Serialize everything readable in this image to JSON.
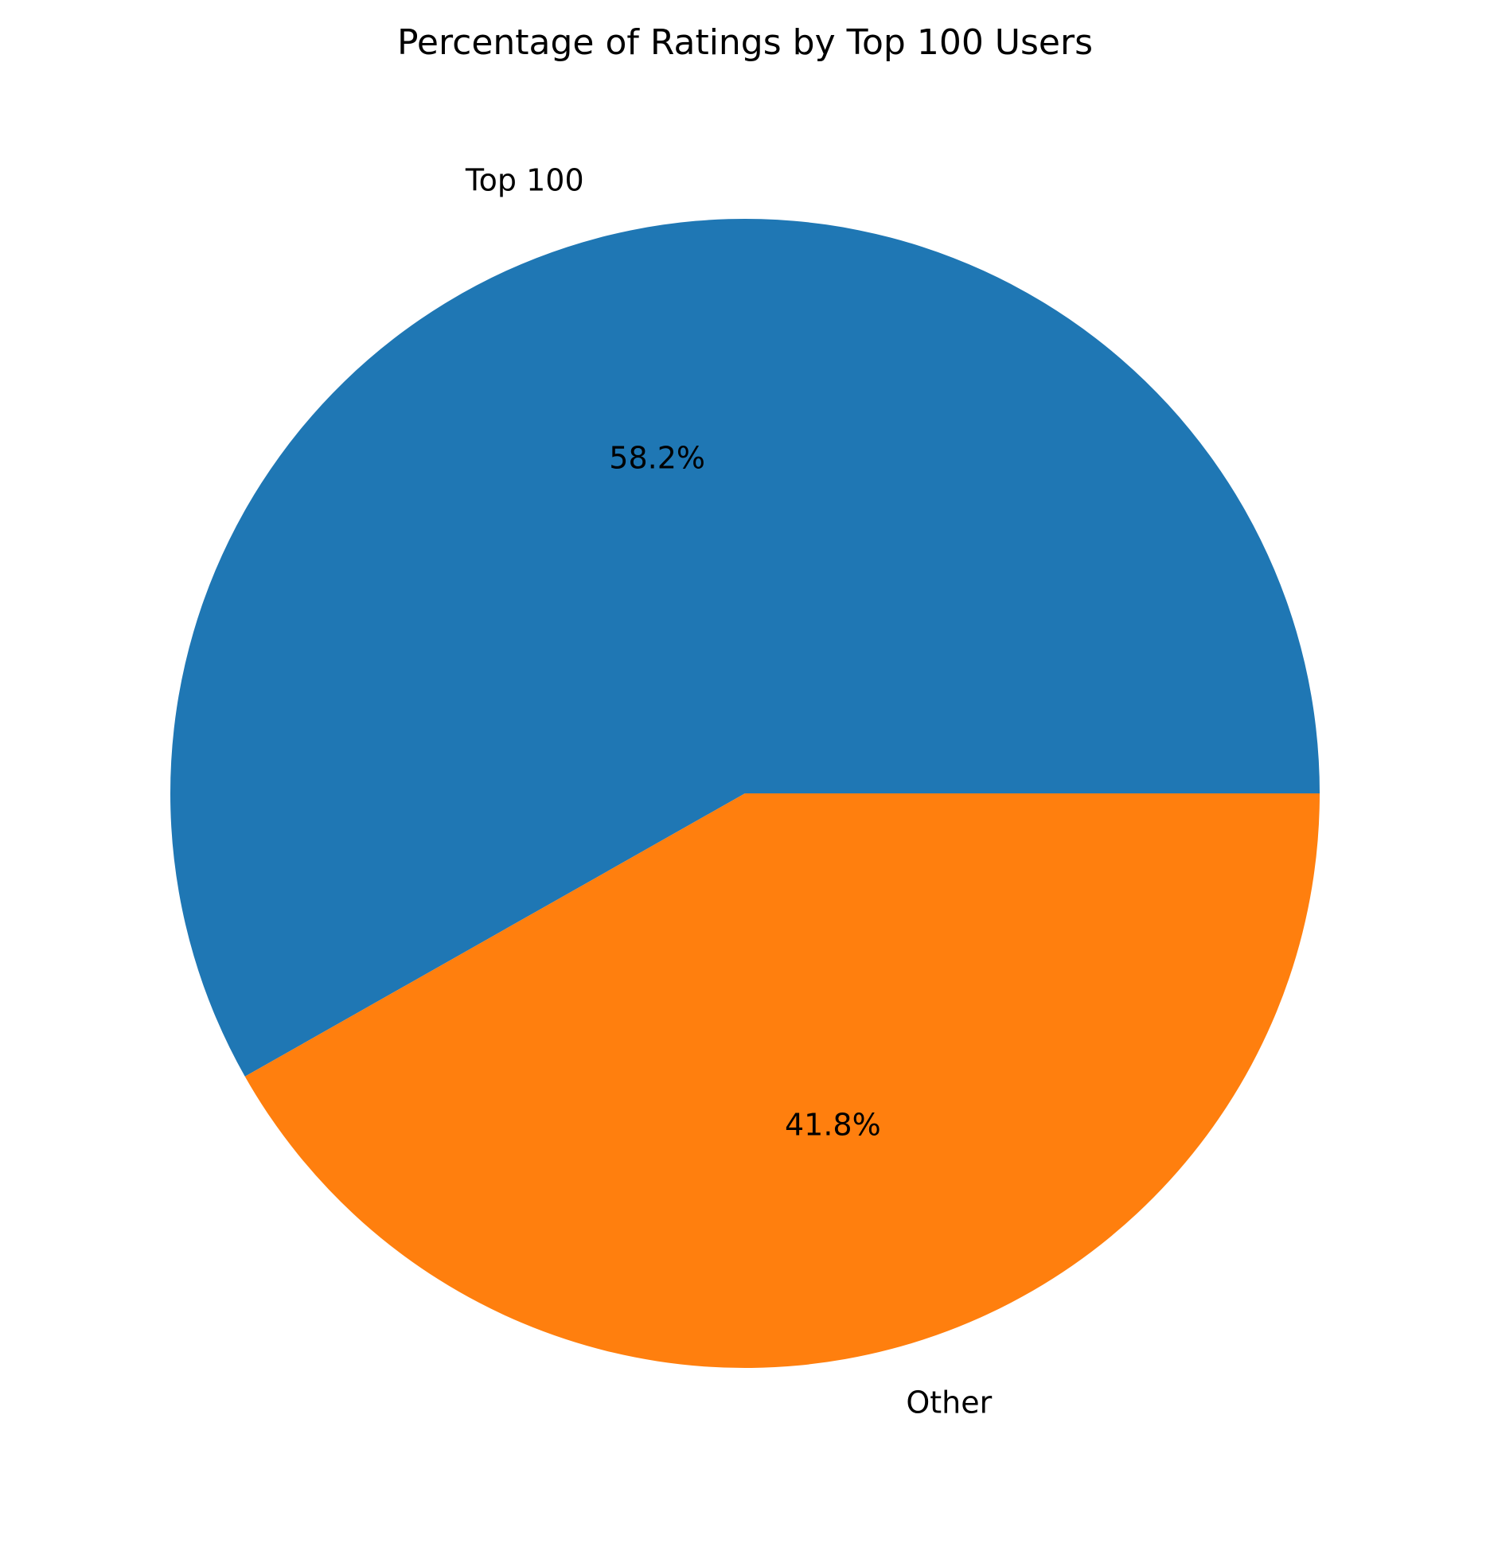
{
  "chart_data": {
    "type": "pie",
    "title": "Percentage of Ratings by Top 100 Users",
    "slices": [
      {
        "label": "Top 100",
        "value": 58.2,
        "pct_label": "58.2%",
        "color": "#1f77b4"
      },
      {
        "label": "Other",
        "value": 41.8,
        "pct_label": "41.8%",
        "color": "#ff7f0e"
      }
    ],
    "start_angle_deg": 0,
    "direction": "counterclockwise",
    "legend": "none"
  }
}
